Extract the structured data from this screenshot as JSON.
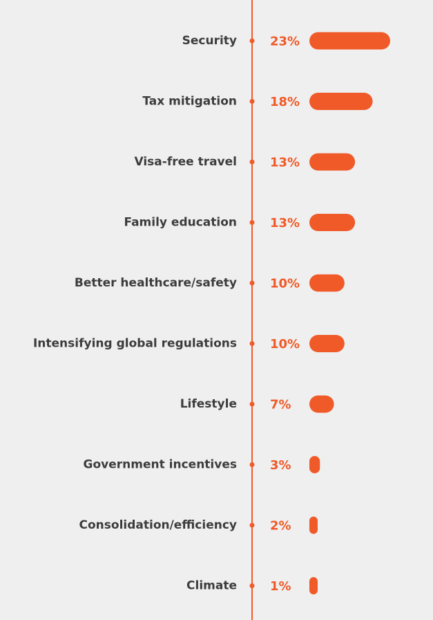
{
  "chart_data": {
    "type": "bar",
    "orientation": "horizontal",
    "categories": [
      "Security",
      "Tax mitigation",
      "Visa-free travel",
      "Family education",
      "Better healthcare/safety",
      "Intensifying global regulations",
      "Lifestyle",
      "Government incentives",
      "Consolidation/efficiency",
      "Climate"
    ],
    "values": [
      23,
      18,
      13,
      13,
      10,
      10,
      7,
      3,
      2,
      1
    ],
    "value_labels": [
      "23%",
      "18%",
      "13%",
      "13%",
      "10%",
      "10%",
      "7%",
      "3%",
      "2%",
      "1%"
    ],
    "grid": false,
    "legend": "none"
  },
  "colors": {
    "accent": "#f05a28",
    "label": "#3c3c3c",
    "background": "#efefef"
  }
}
